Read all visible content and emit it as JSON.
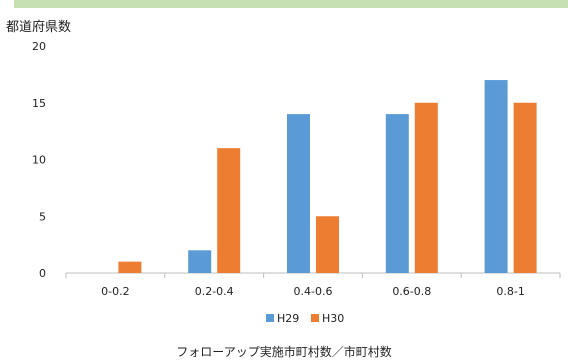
{
  "chart_data": {
    "type": "bar",
    "ylabel": "都道府県数",
    "xlabel": "フォローアップ実施市町村数／市町村数",
    "categories": [
      "0-0.2",
      "0.2-0.4",
      "0.4-0.6",
      "0.6-0.8",
      "0.8-1"
    ],
    "ylim": [
      0,
      20
    ],
    "yticks": [
      0,
      5,
      10,
      15,
      20
    ],
    "grid": false,
    "legend_position": "bottom",
    "series": [
      {
        "name": "H29",
        "color": "#5b9bd5",
        "values": [
          0,
          2,
          14,
          14,
          17
        ]
      },
      {
        "name": "H30",
        "color": "#ed7d31",
        "values": [
          1,
          11,
          5,
          15,
          15
        ]
      }
    ]
  }
}
